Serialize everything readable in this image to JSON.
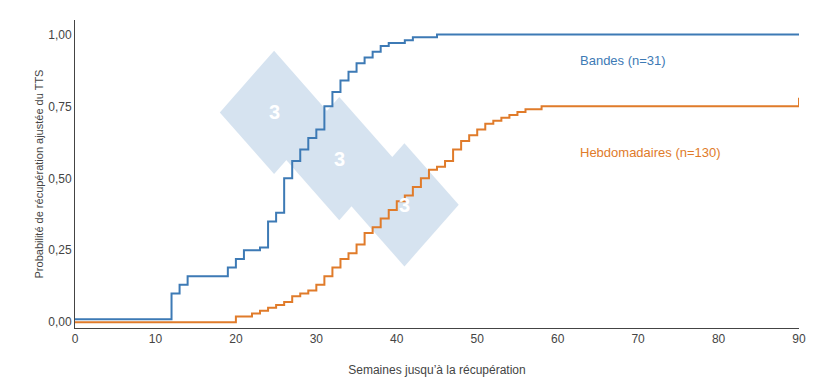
{
  "chart_data": {
    "type": "step",
    "xlabel": "Semaines jusqu’à la récupération",
    "ylabel": "Probabilité de récupération ajustée du TTS",
    "series": [
      {
        "name": "Bandes (n=31)",
        "color": "#3d7ab5",
        "x": [
          0,
          11,
          12,
          13,
          14,
          18,
          19,
          20,
          21,
          23,
          24,
          25,
          26,
          27,
          28,
          29,
          30,
          31,
          32,
          33,
          34,
          35,
          36,
          37,
          38,
          39,
          40,
          41,
          42,
          43,
          44,
          45,
          46,
          47,
          48,
          90
        ],
        "values": [
          0.01,
          0.01,
          0.1,
          0.13,
          0.16,
          0.16,
          0.19,
          0.22,
          0.25,
          0.26,
          0.35,
          0.38,
          0.5,
          0.56,
          0.6,
          0.64,
          0.67,
          0.75,
          0.8,
          0.84,
          0.87,
          0.9,
          0.92,
          0.94,
          0.96,
          0.97,
          0.97,
          0.98,
          0.99,
          0.99,
          0.99,
          1.0,
          1.0,
          1.0,
          1.0,
          1.0
        ]
      },
      {
        "name": "Hebdomadaires (n=130)",
        "color": "#e07b2a",
        "x": [
          0,
          19,
          20,
          22,
          23,
          24,
          25,
          26,
          27,
          28,
          29,
          30,
          31,
          32,
          33,
          34,
          35,
          36,
          37,
          38,
          39,
          40,
          41,
          42,
          43,
          44,
          45,
          46,
          47,
          48,
          49,
          50,
          51,
          52,
          53,
          54,
          55,
          56,
          57,
          58,
          60,
          62,
          64,
          66,
          68,
          88,
          90
        ],
        "values": [
          0.0,
          0.0,
          0.02,
          0.03,
          0.04,
          0.05,
          0.06,
          0.07,
          0.09,
          0.1,
          0.11,
          0.13,
          0.16,
          0.19,
          0.22,
          0.24,
          0.27,
          0.31,
          0.33,
          0.36,
          0.39,
          0.42,
          0.44,
          0.47,
          0.5,
          0.53,
          0.54,
          0.56,
          0.6,
          0.63,
          0.65,
          0.67,
          0.69,
          0.7,
          0.71,
          0.72,
          0.73,
          0.74,
          0.74,
          0.75,
          0.75,
          0.75,
          0.75,
          0.75,
          0.75,
          0.75,
          0.78
        ]
      }
    ],
    "xlim": [
      0,
      90
    ],
    "ylim": [
      -0.02,
      1.05
    ],
    "xticks": [
      0,
      10,
      20,
      30,
      40,
      50,
      60,
      70,
      80,
      90
    ],
    "yticks": [
      {
        "value": 0.0,
        "label": "0,00"
      },
      {
        "value": 0.25,
        "label": "0,25"
      },
      {
        "value": 0.5,
        "label": "0,50"
      },
      {
        "value": 0.75,
        "label": "0,75"
      },
      {
        "value": 1.0,
        "label": "1,00"
      }
    ],
    "annotations": [
      "3",
      "3",
      "3"
    ],
    "grid": false
  }
}
